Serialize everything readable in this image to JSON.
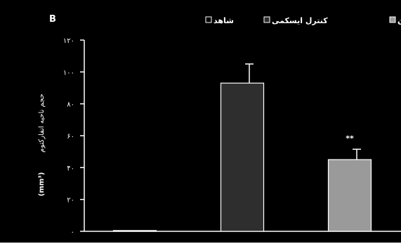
{
  "panel_label": "B",
  "legend": {
    "items": [
      {
        "name": "ایسکمی و روغن زیتون",
        "swatch": "#9a9a9a"
      },
      {
        "name": "کنترل ایسکمی",
        "swatch": "#2e2e2e"
      },
      {
        "name": "شاهد",
        "swatch": "#000000"
      }
    ]
  },
  "colors": {
    "background": "#000000",
    "axis": "#ffffff",
    "text": "#ffffff",
    "bar_outline": "#ffffff"
  },
  "chart_data": {
    "type": "bar",
    "categories": [
      "",
      "",
      ""
    ],
    "series": [
      {
        "name": "شاهد",
        "value": 0.5,
        "error": 0,
        "color": "#000000"
      },
      {
        "name": "کنترل ایسکمی",
        "value": 93,
        "error": 12,
        "color": "#2e2e2e"
      },
      {
        "name": "ایسکمی و روغن زیتون",
        "value": 45,
        "error": 6.5,
        "color": "#9a9a9a",
        "annotation": "**"
      }
    ],
    "ylabel_main": "حجم ناحیه انفارکتوم",
    "ylabel_unit": "(mm³)",
    "ylim": [
      0,
      120
    ],
    "yticks": [
      0,
      20,
      40,
      60,
      80,
      100,
      120
    ],
    "ytick_labels": [
      "۰",
      "۲۰",
      "۴۰",
      "۶۰",
      "۸۰",
      "۱۰۰",
      "۱۲۰"
    ],
    "grid": false,
    "legend_position": "top"
  }
}
